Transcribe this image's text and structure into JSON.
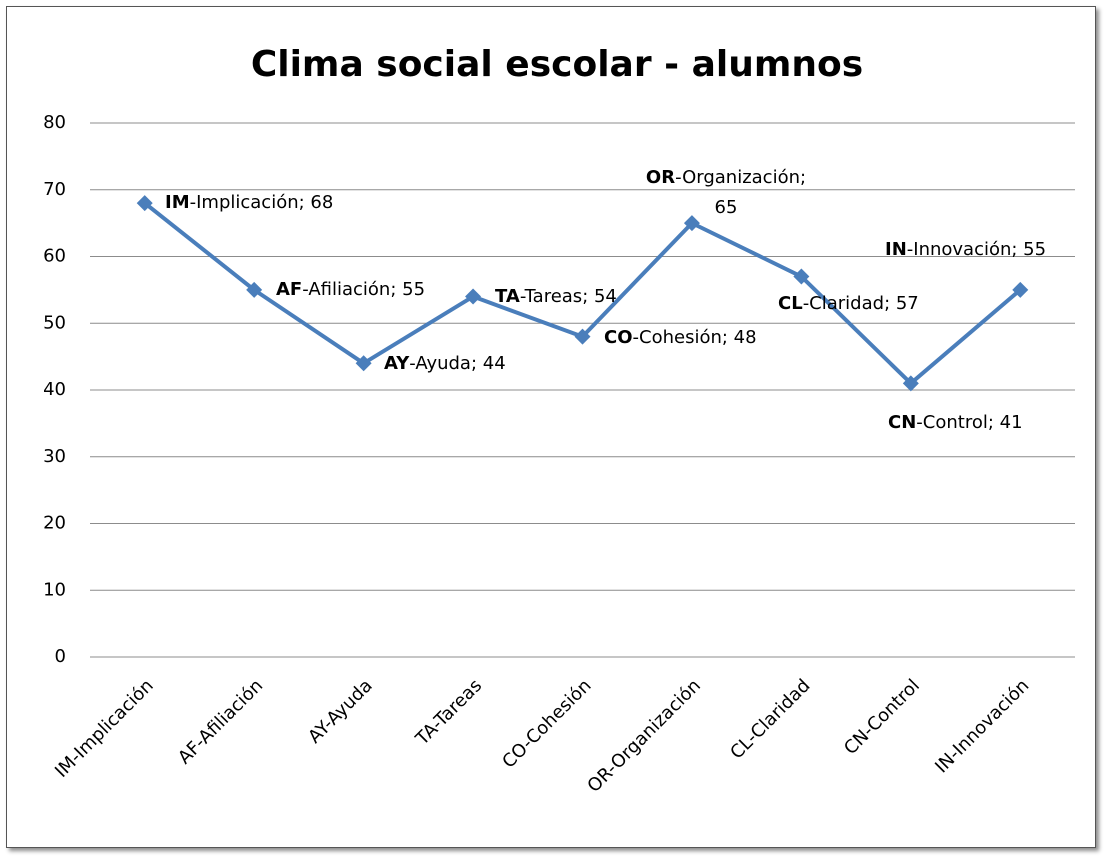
{
  "chart_data": {
    "type": "line",
    "title": "Clima social escolar - alumnos",
    "categories": [
      "IM-Implicación",
      "AF-Afiliación",
      "AY-Ayuda",
      "TA-Tareas",
      "CO-Cohesión",
      "OR-Organización",
      "CL-Claridad",
      "CN-Control",
      "IN-Innovación"
    ],
    "series": [
      {
        "name": "Clima social escolar - alumnos",
        "color": "#4a7ebb",
        "values": [
          68,
          55,
          44,
          54,
          48,
          65,
          57,
          41,
          55
        ],
        "value_labels": [
          "IM-Implicación; 68",
          "AF-Afiliación; 55",
          "AY-Ayuda; 44",
          "TA-Tareas; 54",
          "CO-Cohesión; 48",
          "OR-Organización; 65",
          "CL-Claridad; 57",
          "CN-Control; 41",
          "IN-Innovación; 55"
        ]
      }
    ],
    "ylim": [
      0,
      80
    ],
    "yticks": [
      0,
      10,
      20,
      30,
      40,
      50,
      60,
      70,
      80
    ],
    "grid": true
  }
}
